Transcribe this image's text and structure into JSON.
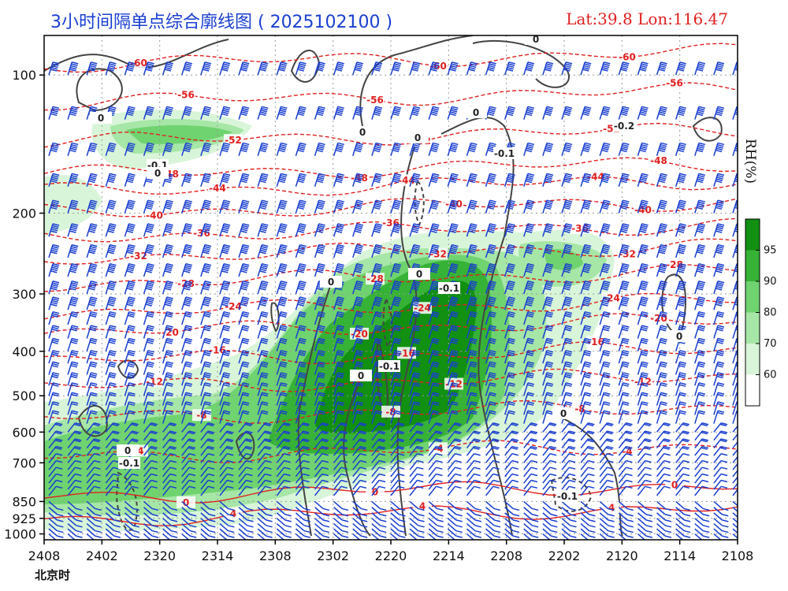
{
  "header": {
    "title": "3小时间隔单点综合廓线图 ( 2025102100 )",
    "location": "Lat:39.8  Lon:116.47",
    "x_unit": "北京时",
    "rh_label": "RH(%)"
  },
  "colors": {
    "temperature": "#e02020",
    "wind": "#1a3fd0",
    "vertical_motion": "#444444",
    "rh_levels": [
      "#d9f5d9",
      "#a6e6a6",
      "#6fd36f",
      "#36b236",
      "#129012"
    ]
  },
  "chart_data": {
    "type": "time-height cross-section",
    "x_ticks": [
      "2408",
      "2402",
      "2320",
      "2314",
      "2308",
      "2302",
      "2220",
      "2214",
      "2208",
      "2202",
      "2120",
      "2114",
      "2108"
    ],
    "y_ticks": [
      100,
      200,
      300,
      400,
      500,
      600,
      700,
      850,
      925,
      1000
    ],
    "colorbar": {
      "label": "RH(%)",
      "ticks": [
        60,
        70,
        80,
        90,
        95
      ]
    },
    "temperature_isotherm_labels": [
      -60,
      -56,
      -52,
      -48,
      -44,
      -40,
      -36,
      -32,
      -28,
      -24,
      -20,
      -16,
      -12,
      -8,
      -4,
      0,
      4
    ],
    "vertical_motion_labels": [
      0,
      -0.1,
      -0.2
    ],
    "grid": true,
    "barbs": "wind barbs at every 3-hour column and pressure level"
  }
}
